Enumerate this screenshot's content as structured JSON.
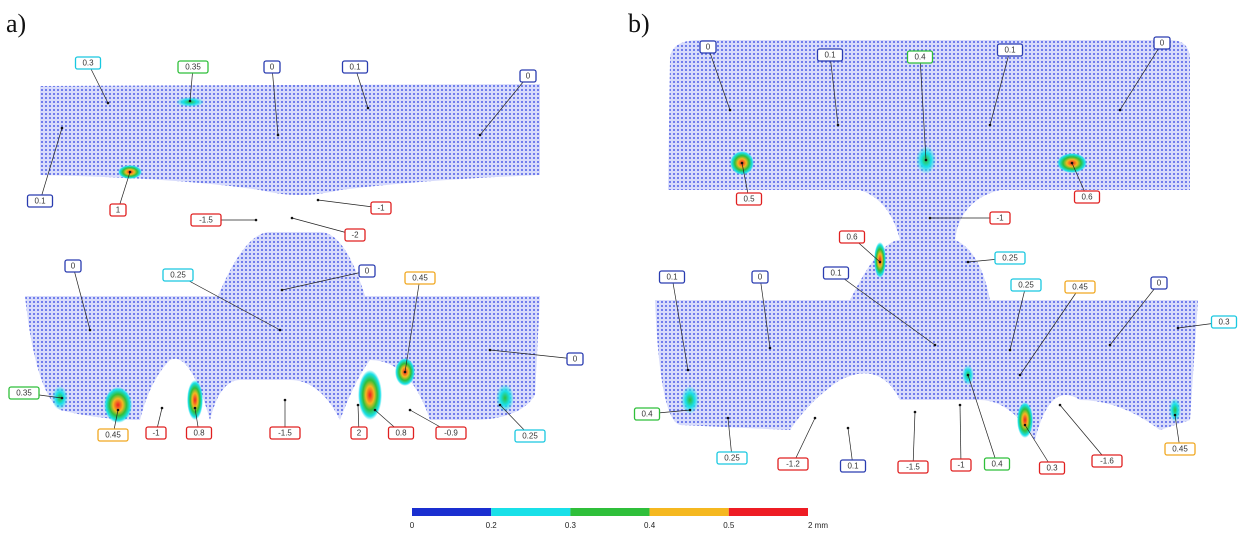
{
  "panels": [
    {
      "label": "a)",
      "annotations": [
        {
          "text": "0.3",
          "color": "cyan"
        },
        {
          "text": "0.35",
          "color": "green"
        },
        {
          "text": "0",
          "color": "blue"
        },
        {
          "text": "0.1",
          "color": "blue"
        },
        {
          "text": "0",
          "color": "blue"
        },
        {
          "text": "0.1",
          "color": "blue"
        },
        {
          "text": "1",
          "color": "red"
        },
        {
          "text": "-1",
          "color": "red"
        },
        {
          "text": "-1.5",
          "color": "red"
        },
        {
          "text": "-2",
          "color": "red"
        },
        {
          "text": "0",
          "color": "blue"
        },
        {
          "text": "0.25",
          "color": "cyan"
        },
        {
          "text": "0",
          "color": "blue"
        },
        {
          "text": "0.45",
          "color": "orange"
        },
        {
          "text": "0",
          "color": "blue"
        },
        {
          "text": "0.35",
          "color": "green"
        },
        {
          "text": "0.45",
          "color": "orange"
        },
        {
          "text": "-1",
          "color": "red"
        },
        {
          "text": "0.8",
          "color": "red"
        },
        {
          "text": "-1.5",
          "color": "red"
        },
        {
          "text": "2",
          "color": "red"
        },
        {
          "text": "0.8",
          "color": "red"
        },
        {
          "text": "-0.9",
          "color": "red"
        },
        {
          "text": "0.25",
          "color": "cyan"
        }
      ]
    },
    {
      "label": "b)",
      "annotations": [
        {
          "text": "0",
          "color": "blue"
        },
        {
          "text": "0.1",
          "color": "blue"
        },
        {
          "text": "0.4",
          "color": "green"
        },
        {
          "text": "0.1",
          "color": "blue"
        },
        {
          "text": "0",
          "color": "blue"
        },
        {
          "text": "0.5",
          "color": "red"
        },
        {
          "text": "0.6",
          "color": "red"
        },
        {
          "text": "-1",
          "color": "red"
        },
        {
          "text": "0.6",
          "color": "red"
        },
        {
          "text": "0.25",
          "color": "cyan"
        },
        {
          "text": "0.1",
          "color": "blue"
        },
        {
          "text": "0",
          "color": "blue"
        },
        {
          "text": "0.1",
          "color": "blue"
        },
        {
          "text": "0.25",
          "color": "cyan"
        },
        {
          "text": "0.45",
          "color": "orange"
        },
        {
          "text": "0",
          "color": "blue"
        },
        {
          "text": "0.3",
          "color": "cyan"
        },
        {
          "text": "0.4",
          "color": "green"
        },
        {
          "text": "0.25",
          "color": "cyan"
        },
        {
          "text": "-1.2",
          "color": "red"
        },
        {
          "text": "0.1",
          "color": "blue"
        },
        {
          "text": "-1.5",
          "color": "red"
        },
        {
          "text": "-1",
          "color": "red"
        },
        {
          "text": "0.4",
          "color": "green"
        },
        {
          "text": "0.3",
          "color": "red"
        },
        {
          "text": "-1.6",
          "color": "red"
        },
        {
          "text": "0.45",
          "color": "orange"
        }
      ]
    }
  ],
  "colorbar": {
    "colors": [
      "#1a2fd0",
      "#19e0e8",
      "#2fbf3a",
      "#f5b820",
      "#ee1c24"
    ],
    "ticks": [
      "0",
      "0.2",
      "0.3",
      "0.4",
      "0.5",
      "2 mm"
    ]
  }
}
